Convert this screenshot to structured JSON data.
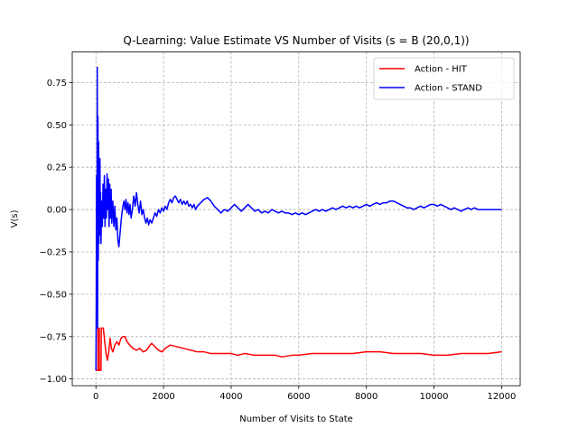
{
  "chart_data": {
    "type": "line",
    "title": "Q-Learning: Value Estimate VS Number of Visits (s = B (20,0,1))",
    "xlabel": "Number of Visits to State",
    "ylabel": "V(s)",
    "xlim": [
      -700,
      12550
    ],
    "ylim": [
      -1.04,
      0.93
    ],
    "xticks": [
      0,
      2000,
      4000,
      6000,
      8000,
      10000,
      12000
    ],
    "xtick_labels": [
      "0",
      "2000",
      "4000",
      "6000",
      "8000",
      "10000",
      "12000"
    ],
    "yticks": [
      -1.0,
      -0.75,
      -0.5,
      -0.25,
      0.0,
      0.25,
      0.5,
      0.75
    ],
    "ytick_labels": [
      "−1.00",
      "−0.75",
      "−0.50",
      "−0.25",
      "0.00",
      "0.25",
      "0.50",
      "0.75"
    ],
    "grid": true,
    "legend_position": "top-right",
    "series": [
      {
        "name": "Action - HIT",
        "color": "#ff0000",
        "points": [
          [
            0,
            -0.95
          ],
          [
            60,
            -0.95
          ],
          [
            60,
            -0.7
          ],
          [
            100,
            -0.7
          ],
          [
            100,
            -0.95
          ],
          [
            150,
            -0.95
          ],
          [
            160,
            -0.7
          ],
          [
            220,
            -0.7
          ],
          [
            260,
            -0.78
          ],
          [
            300,
            -0.85
          ],
          [
            340,
            -0.89
          ],
          [
            380,
            -0.84
          ],
          [
            420,
            -0.76
          ],
          [
            460,
            -0.82
          ],
          [
            500,
            -0.84
          ],
          [
            560,
            -0.8
          ],
          [
            620,
            -0.78
          ],
          [
            680,
            -0.8
          ],
          [
            740,
            -0.76
          ],
          [
            800,
            -0.75
          ],
          [
            860,
            -0.75
          ],
          [
            920,
            -0.78
          ],
          [
            1000,
            -0.8
          ],
          [
            1100,
            -0.82
          ],
          [
            1200,
            -0.83
          ],
          [
            1300,
            -0.82
          ],
          [
            1400,
            -0.84
          ],
          [
            1500,
            -0.83
          ],
          [
            1600,
            -0.8
          ],
          [
            1650,
            -0.79
          ],
          [
            1750,
            -0.81
          ],
          [
            1850,
            -0.83
          ],
          [
            1950,
            -0.84
          ],
          [
            2050,
            -0.82
          ],
          [
            2200,
            -0.8
          ],
          [
            2400,
            -0.81
          ],
          [
            2600,
            -0.82
          ],
          [
            2800,
            -0.83
          ],
          [
            3000,
            -0.84
          ],
          [
            3200,
            -0.84
          ],
          [
            3400,
            -0.85
          ],
          [
            3600,
            -0.85
          ],
          [
            3800,
            -0.85
          ],
          [
            4000,
            -0.85
          ],
          [
            4200,
            -0.86
          ],
          [
            4400,
            -0.85
          ],
          [
            4700,
            -0.86
          ],
          [
            5000,
            -0.86
          ],
          [
            5300,
            -0.86
          ],
          [
            5500,
            -0.87
          ],
          [
            5800,
            -0.86
          ],
          [
            6000,
            -0.86
          ],
          [
            6400,
            -0.85
          ],
          [
            6800,
            -0.85
          ],
          [
            7200,
            -0.85
          ],
          [
            7600,
            -0.85
          ],
          [
            8000,
            -0.84
          ],
          [
            8400,
            -0.84
          ],
          [
            8800,
            -0.85
          ],
          [
            9200,
            -0.85
          ],
          [
            9600,
            -0.85
          ],
          [
            10000,
            -0.86
          ],
          [
            10400,
            -0.86
          ],
          [
            10800,
            -0.85
          ],
          [
            11200,
            -0.85
          ],
          [
            11600,
            -0.85
          ],
          [
            12000,
            -0.84
          ]
        ]
      },
      {
        "name": "Action - STAND",
        "color": "#0000ff",
        "points": [
          [
            0,
            -0.95
          ],
          [
            10,
            -0.6
          ],
          [
            20,
            0.2
          ],
          [
            30,
            -0.4
          ],
          [
            40,
            0.84
          ],
          [
            50,
            -0.7
          ],
          [
            60,
            0.55
          ],
          [
            70,
            -0.3
          ],
          [
            80,
            0.4
          ],
          [
            90,
            -0.2
          ],
          [
            100,
            0.25
          ],
          [
            110,
            -0.1
          ],
          [
            120,
            0.3
          ],
          [
            130,
            -0.15
          ],
          [
            140,
            0.1
          ],
          [
            150,
            -0.2
          ],
          [
            170,
            0.05
          ],
          [
            190,
            -0.1
          ],
          [
            210,
            0.15
          ],
          [
            230,
            -0.05
          ],
          [
            250,
            0.2
          ],
          [
            270,
            -0.1
          ],
          [
            290,
            0.12
          ],
          [
            310,
            -0.05
          ],
          [
            330,
            0.21
          ],
          [
            350,
            0.0
          ],
          [
            370,
            0.18
          ],
          [
            390,
            -0.1
          ],
          [
            410,
            0.15
          ],
          [
            430,
            -0.05
          ],
          [
            450,
            0.12
          ],
          [
            470,
            -0.08
          ],
          [
            500,
            0.05
          ],
          [
            530,
            -0.1
          ],
          [
            560,
            0.02
          ],
          [
            590,
            -0.12
          ],
          [
            620,
            -0.05
          ],
          [
            650,
            -0.18
          ],
          [
            680,
            -0.22
          ],
          [
            710,
            -0.15
          ],
          [
            740,
            -0.08
          ],
          [
            770,
            -0.02
          ],
          [
            800,
            0.02
          ],
          [
            830,
            0.05
          ],
          [
            860,
            0.0
          ],
          [
            890,
            0.06
          ],
          [
            920,
            -0.02
          ],
          [
            950,
            0.04
          ],
          [
            980,
            -0.03
          ],
          [
            1010,
            0.03
          ],
          [
            1040,
            -0.05
          ],
          [
            1080,
            0.0
          ],
          [
            1120,
            0.08
          ],
          [
            1160,
            0.02
          ],
          [
            1200,
            0.1
          ],
          [
            1240,
            0.03
          ],
          [
            1280,
            -0.02
          ],
          [
            1320,
            0.05
          ],
          [
            1360,
            -0.03
          ],
          [
            1400,
            0.0
          ],
          [
            1440,
            -0.05
          ],
          [
            1480,
            -0.08
          ],
          [
            1520,
            -0.05
          ],
          [
            1560,
            -0.09
          ],
          [
            1600,
            -0.06
          ],
          [
            1650,
            -0.08
          ],
          [
            1700,
            -0.05
          ],
          [
            1750,
            -0.02
          ],
          [
            1800,
            -0.04
          ],
          [
            1850,
            0.0
          ],
          [
            1900,
            -0.02
          ],
          [
            1950,
            0.01
          ],
          [
            2000,
            -0.01
          ],
          [
            2050,
            0.02
          ],
          [
            2100,
            0.0
          ],
          [
            2150,
            0.04
          ],
          [
            2200,
            0.06
          ],
          [
            2250,
            0.04
          ],
          [
            2300,
            0.07
          ],
          [
            2350,
            0.08
          ],
          [
            2400,
            0.06
          ],
          [
            2450,
            0.04
          ],
          [
            2500,
            0.06
          ],
          [
            2550,
            0.03
          ],
          [
            2600,
            0.05
          ],
          [
            2650,
            0.03
          ],
          [
            2700,
            0.05
          ],
          [
            2750,
            0.02
          ],
          [
            2800,
            0.03
          ],
          [
            2850,
            0.01
          ],
          [
            2900,
            0.03
          ],
          [
            2950,
            0.0
          ],
          [
            3000,
            0.02
          ],
          [
            3100,
            0.04
          ],
          [
            3200,
            0.06
          ],
          [
            3300,
            0.07
          ],
          [
            3400,
            0.05
          ],
          [
            3500,
            0.02
          ],
          [
            3600,
            0.0
          ],
          [
            3700,
            -0.02
          ],
          [
            3800,
            0.0
          ],
          [
            3900,
            -0.01
          ],
          [
            4000,
            0.01
          ],
          [
            4100,
            0.03
          ],
          [
            4200,
            0.01
          ],
          [
            4300,
            -0.01
          ],
          [
            4400,
            0.01
          ],
          [
            4500,
            0.03
          ],
          [
            4600,
            0.01
          ],
          [
            4700,
            -0.01
          ],
          [
            4800,
            0.0
          ],
          [
            4900,
            -0.02
          ],
          [
            5000,
            -0.01
          ],
          [
            5100,
            -0.02
          ],
          [
            5200,
            0.0
          ],
          [
            5300,
            -0.01
          ],
          [
            5400,
            -0.02
          ],
          [
            5500,
            -0.01
          ],
          [
            5600,
            -0.02
          ],
          [
            5700,
            -0.02
          ],
          [
            5800,
            -0.03
          ],
          [
            5900,
            -0.02
          ],
          [
            6000,
            -0.03
          ],
          [
            6100,
            -0.02
          ],
          [
            6200,
            -0.03
          ],
          [
            6300,
            -0.02
          ],
          [
            6400,
            -0.01
          ],
          [
            6500,
            0.0
          ],
          [
            6600,
            -0.01
          ],
          [
            6700,
            0.0
          ],
          [
            6800,
            -0.01
          ],
          [
            6900,
            0.0
          ],
          [
            7000,
            0.01
          ],
          [
            7100,
            0.0
          ],
          [
            7200,
            0.01
          ],
          [
            7300,
            0.02
          ],
          [
            7400,
            0.01
          ],
          [
            7500,
            0.02
          ],
          [
            7600,
            0.01
          ],
          [
            7700,
            0.02
          ],
          [
            7800,
            0.01
          ],
          [
            7900,
            0.02
          ],
          [
            8000,
            0.03
          ],
          [
            8100,
            0.02
          ],
          [
            8200,
            0.03
          ],
          [
            8300,
            0.04
          ],
          [
            8400,
            0.03
          ],
          [
            8500,
            0.04
          ],
          [
            8600,
            0.04
          ],
          [
            8700,
            0.05
          ],
          [
            8800,
            0.05
          ],
          [
            8900,
            0.04
          ],
          [
            9000,
            0.03
          ],
          [
            9100,
            0.02
          ],
          [
            9200,
            0.01
          ],
          [
            9300,
            0.01
          ],
          [
            9400,
            0.0
          ],
          [
            9500,
            0.01
          ],
          [
            9600,
            0.02
          ],
          [
            9700,
            0.01
          ],
          [
            9800,
            0.02
          ],
          [
            9900,
            0.03
          ],
          [
            10000,
            0.03
          ],
          [
            10100,
            0.02
          ],
          [
            10200,
            0.03
          ],
          [
            10300,
            0.02
          ],
          [
            10400,
            0.01
          ],
          [
            10500,
            0.0
          ],
          [
            10600,
            0.01
          ],
          [
            10700,
            0.0
          ],
          [
            10800,
            -0.01
          ],
          [
            10900,
            0.0
          ],
          [
            11000,
            0.01
          ],
          [
            11100,
            0.0
          ],
          [
            11200,
            0.01
          ],
          [
            11300,
            0.0
          ],
          [
            11400,
            0.0
          ],
          [
            11500,
            0.0
          ],
          [
            11700,
            0.0
          ],
          [
            11850,
            0.0
          ],
          [
            12000,
            0.0
          ]
        ]
      }
    ]
  }
}
